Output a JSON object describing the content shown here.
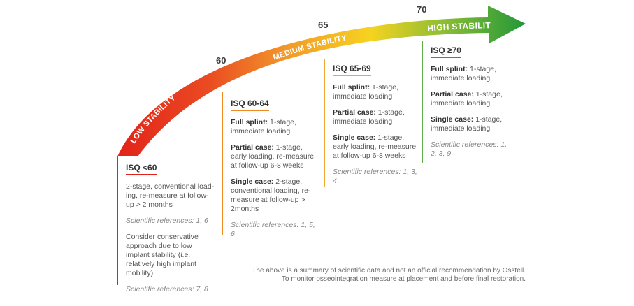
{
  "thresholds": {
    "t60": "60",
    "t65": "65",
    "t70": "70"
  },
  "zones": {
    "low": "LOW STABILITY",
    "medium": "MEDIUM STABILITY",
    "high": "HIGH STABILITY"
  },
  "colors": {
    "low": "#e2231a",
    "medium": "#f6c918",
    "high": "#2a9d3c",
    "orange": "#f08a24"
  },
  "columns": {
    "low": {
      "header": "ISQ <60",
      "text1": "2-stage, conventional load-ing, re-measure at follow-up > 2 months",
      "ref1": "Scientific references: 1, 6",
      "text2": "Consider conservative approach due to low implant stability (i.e. relatively high implant mobility)",
      "ref2": "Scientific references: 7, 8"
    },
    "c6064": {
      "header": "ISQ 60-64",
      "items": [
        {
          "label": "Full splint:",
          "text": " 1-stage, immediate loading"
        },
        {
          "label": "Partial case:",
          "text": " 1-stage, early loading, re-measure at follow-up 6-8 weeks"
        },
        {
          "label": "Single case:",
          "text": " 2-stage, conventional loading, re-measure at follow-up > 2months"
        }
      ],
      "ref": "Scientific references: 1, 5, 6"
    },
    "c6569": {
      "header": "ISQ 65-69",
      "items": [
        {
          "label": "Full splint:",
          "text": " 1-stage, immediate loading"
        },
        {
          "label": "Partial case:",
          "text": " 1-stage, immediate loading"
        },
        {
          "label": "Single case:",
          "text": " 1-stage, early loading, re-measure at follow-up 6-8 weeks"
        }
      ],
      "ref": "Scientific references: 1, 3, 4"
    },
    "c70": {
      "header": "ISQ ≥70",
      "items": [
        {
          "label": "Full splint:",
          "text": " 1-stage, immediate loading"
        },
        {
          "label": "Partial case:",
          "text": " 1-stage, immediate loading"
        },
        {
          "label": "Single case:",
          "text": " 1-stage, immediate loading"
        }
      ],
      "ref": "Scientific references: 1, 2, 3, 9"
    }
  },
  "footnote": {
    "line1": "The above is a summary of scientific data and not an official recommendation by Osstell.",
    "line2": "To monitor osseointegration measure at placement and before final restoration."
  }
}
